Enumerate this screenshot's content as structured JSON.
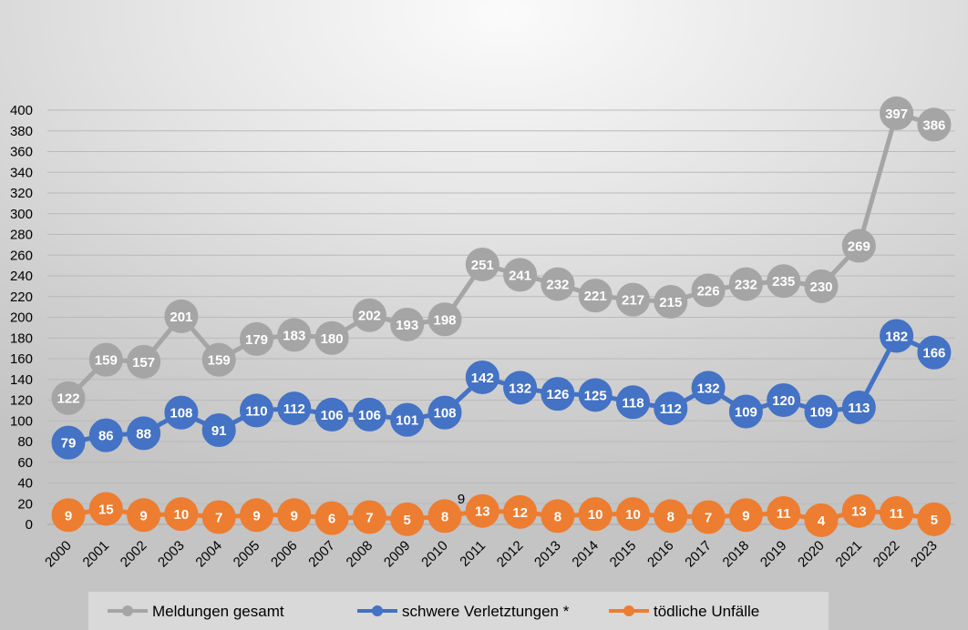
{
  "chart_data": {
    "type": "line",
    "title": "",
    "xlabel": "",
    "ylabel": "",
    "ylim": [
      0,
      400
    ],
    "yticks": [
      0,
      20,
      40,
      60,
      80,
      100,
      120,
      140,
      160,
      180,
      200,
      220,
      240,
      260,
      280,
      300,
      320,
      340,
      360,
      380,
      400
    ],
    "categories": [
      "2000",
      "2001",
      "2002",
      "2003",
      "2004",
      "2005",
      "2006",
      "2007",
      "2008",
      "2009",
      "2010",
      "2011",
      "2012",
      "2013",
      "2014",
      "2015",
      "2016",
      "2017",
      "2018",
      "2019",
      "2020",
      "2021",
      "2022",
      "2023"
    ],
    "series": [
      {
        "name": "Meldungen gesamt",
        "color": "#a5a5a5",
        "values": [
          122,
          159,
          157,
          201,
          159,
          179,
          183,
          180,
          202,
          193,
          198,
          251,
          241,
          232,
          221,
          217,
          215,
          226,
          232,
          235,
          230,
          269,
          397,
          386
        ]
      },
      {
        "name": "schwere Verletztungen *",
        "color": "#4472c4",
        "values": [
          79,
          86,
          88,
          108,
          91,
          110,
          112,
          106,
          106,
          101,
          108,
          142,
          132,
          126,
          125,
          118,
          112,
          132,
          109,
          120,
          109,
          113,
          182,
          166
        ]
      },
      {
        "name": "tödliche Unfälle",
        "color": "#ed7d31",
        "values": [
          9,
          15,
          9,
          10,
          7,
          9,
          9,
          6,
          7,
          5,
          8,
          13,
          12,
          8,
          10,
          10,
          8,
          7,
          9,
          11,
          4,
          13,
          11,
          5
        ]
      }
    ],
    "grid": true,
    "legend_position": "bottom",
    "annotations": [
      {
        "text": "9",
        "near_category": "2010"
      }
    ]
  }
}
